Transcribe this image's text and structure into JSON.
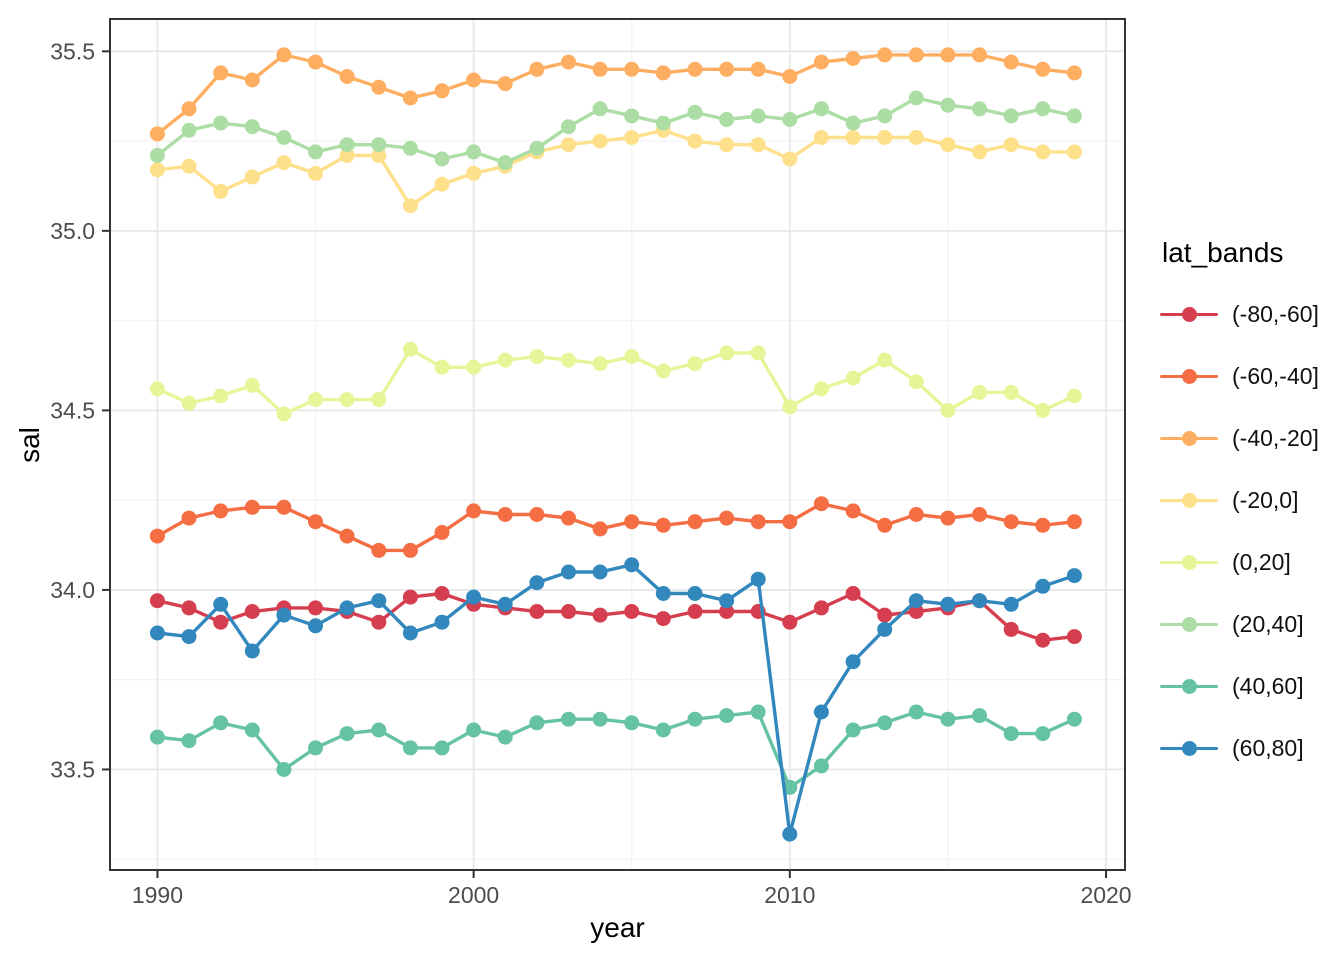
{
  "chart_data": {
    "type": "line",
    "title": "",
    "xlabel": "year",
    "ylabel": "sal",
    "legend_title": "lat_bands",
    "legend_position": "right",
    "grid": true,
    "background": "#ffffff",
    "panel_border_color": "#333333",
    "grid_major_color": "#e8e8e8",
    "grid_minor_color": "#f2f2f2",
    "tick_color": "#333333",
    "tick_label_color": "#4d4d4d",
    "xlim": [
      1988.5,
      2020.6
    ],
    "ylim": [
      33.22,
      35.59
    ],
    "x_ticks": {
      "values": [
        1990,
        2000,
        2010,
        2020
      ],
      "labels": [
        "1990",
        "2000",
        "2010",
        "2020"
      ]
    },
    "x_minor": [
      1995,
      2005,
      2015
    ],
    "y_ticks": {
      "values": [
        33.5,
        34.0,
        34.5,
        35.0,
        35.5
      ],
      "labels": [
        "33.5",
        "34.0",
        "34.5",
        "35.0",
        "35.5"
      ]
    },
    "y_minor": [
      33.25,
      33.75,
      34.25,
      34.75,
      35.25
    ],
    "x": [
      1990,
      1991,
      1992,
      1993,
      1994,
      1995,
      1996,
      1997,
      1998,
      1999,
      2000,
      2001,
      2002,
      2003,
      2004,
      2005,
      2006,
      2007,
      2008,
      2009,
      2010,
      2011,
      2012,
      2013,
      2014,
      2015,
      2016,
      2017,
      2018,
      2019
    ],
    "series": [
      {
        "name": "(-80,-60]",
        "color": "#d53e4f",
        "values": [
          33.97,
          33.95,
          33.91,
          33.94,
          33.95,
          33.95,
          33.94,
          33.91,
          33.98,
          33.99,
          33.96,
          33.95,
          33.94,
          33.94,
          33.93,
          33.94,
          33.92,
          33.94,
          33.94,
          33.94,
          33.91,
          33.95,
          33.99,
          33.93,
          33.94,
          33.95,
          33.97,
          33.89,
          33.86,
          33.87
        ]
      },
      {
        "name": "(-60,-40]",
        "color": "#f46d43",
        "values": [
          34.15,
          34.2,
          34.22,
          34.23,
          34.23,
          34.19,
          34.15,
          34.11,
          34.11,
          34.16,
          34.22,
          34.21,
          34.21,
          34.2,
          34.17,
          34.19,
          34.18,
          34.19,
          34.2,
          34.19,
          34.19,
          34.24,
          34.22,
          34.18,
          34.21,
          34.2,
          34.21,
          34.19,
          34.18,
          34.19
        ]
      },
      {
        "name": "(-40,-20]",
        "color": "#fdae61",
        "values": [
          35.27,
          35.34,
          35.44,
          35.42,
          35.49,
          35.47,
          35.43,
          35.4,
          35.37,
          35.39,
          35.42,
          35.41,
          35.45,
          35.47,
          35.45,
          35.45,
          35.44,
          35.45,
          35.45,
          35.45,
          35.43,
          35.47,
          35.48,
          35.49,
          35.49,
          35.49,
          35.49,
          35.47,
          35.45,
          35.44
        ]
      },
      {
        "name": "(-20,0]",
        "color": "#fee08b",
        "values": [
          35.17,
          35.18,
          35.11,
          35.15,
          35.19,
          35.16,
          35.21,
          35.21,
          35.07,
          35.13,
          35.16,
          35.18,
          35.22,
          35.24,
          35.25,
          35.26,
          35.28,
          35.25,
          35.24,
          35.24,
          35.2,
          35.26,
          35.26,
          35.26,
          35.26,
          35.24,
          35.22,
          35.24,
          35.22,
          35.22
        ]
      },
      {
        "name": "(0,20]",
        "color": "#e6f598",
        "values": [
          34.56,
          34.52,
          34.54,
          34.57,
          34.49,
          34.53,
          34.53,
          34.53,
          34.67,
          34.62,
          34.62,
          34.64,
          34.65,
          34.64,
          34.63,
          34.65,
          34.61,
          34.63,
          34.66,
          34.66,
          34.51,
          34.56,
          34.59,
          34.64,
          34.58,
          34.5,
          34.55,
          34.55,
          34.5,
          34.54
        ]
      },
      {
        "name": "(20,40]",
        "color": "#abdda4",
        "values": [
          35.21,
          35.28,
          35.3,
          35.29,
          35.26,
          35.22,
          35.24,
          35.24,
          35.23,
          35.2,
          35.22,
          35.19,
          35.23,
          35.29,
          35.34,
          35.32,
          35.3,
          35.33,
          35.31,
          35.32,
          35.31,
          35.34,
          35.3,
          35.32,
          35.37,
          35.35,
          35.34,
          35.32,
          35.34,
          35.32
        ]
      },
      {
        "name": "(40,60]",
        "color": "#66c2a5",
        "values": [
          33.59,
          33.58,
          33.63,
          33.61,
          33.5,
          33.56,
          33.6,
          33.61,
          33.56,
          33.56,
          33.61,
          33.59,
          33.63,
          33.64,
          33.64,
          33.63,
          33.61,
          33.64,
          33.65,
          33.66,
          33.45,
          33.51,
          33.61,
          33.63,
          33.66,
          33.64,
          33.65,
          33.6,
          33.6,
          33.64
        ]
      },
      {
        "name": "(60,80]",
        "color": "#3288bd",
        "values": [
          33.88,
          33.87,
          33.96,
          33.83,
          33.93,
          33.9,
          33.95,
          33.97,
          33.88,
          33.91,
          33.98,
          33.96,
          34.02,
          34.05,
          34.05,
          34.07,
          33.99,
          33.99,
          33.97,
          34.03,
          33.32,
          33.66,
          33.8,
          33.89,
          33.97,
          33.96,
          33.97,
          33.96,
          34.01,
          34.04
        ]
      }
    ]
  }
}
